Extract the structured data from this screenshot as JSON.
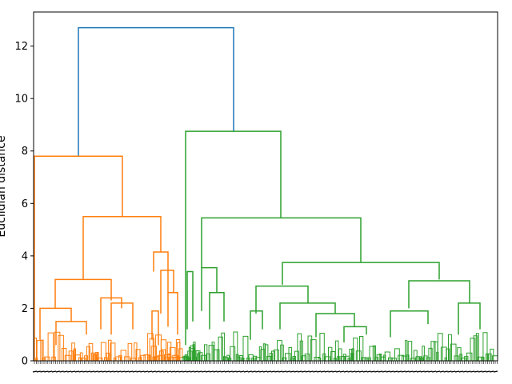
{
  "chart_data": {
    "type": "dendrogram",
    "title": "",
    "xlabel": "",
    "ylabel": "Euclidian distance",
    "ylim": [
      0,
      13.3
    ],
    "yticks": [
      0,
      2,
      4,
      6,
      8,
      10,
      12
    ],
    "grid": false,
    "legend": "none",
    "colors": {
      "root": "#1f77b4",
      "cluster_1": "#ff7f0e",
      "cluster_2": "#2ca02c"
    },
    "merges": [
      {
        "name": "root",
        "height": 12.7,
        "cluster": "root"
      },
      {
        "name": "cluster_1_top",
        "height": 7.8,
        "cluster": "cluster_1"
      },
      {
        "name": "cluster_1_sub",
        "height": 5.5,
        "cluster": "cluster_1"
      },
      {
        "name": "cluster_1_left",
        "height": 3.1,
        "cluster": "cluster_1"
      },
      {
        "name": "cluster_1_right",
        "height": 4.15,
        "cluster": "cluster_1"
      },
      {
        "name": "cluster_2_top",
        "height": 8.75,
        "cluster": "cluster_2"
      },
      {
        "name": "cluster_2_sub",
        "height": 5.45,
        "cluster": "cluster_2"
      },
      {
        "name": "cluster_2_right",
        "height": 3.75,
        "cluster": "cluster_2"
      },
      {
        "name": "cluster_2_left",
        "height": 3.55,
        "cluster": "cluster_2"
      }
    ]
  }
}
